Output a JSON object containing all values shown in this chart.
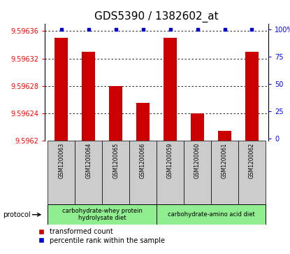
{
  "title": "GDS5390 / 1382602_at",
  "samples": [
    "GSM1200063",
    "GSM1200064",
    "GSM1200065",
    "GSM1200066",
    "GSM1200059",
    "GSM1200060",
    "GSM1200061",
    "GSM1200062"
  ],
  "red_values": [
    9.59635,
    9.59633,
    9.59628,
    9.596255,
    9.59635,
    9.59624,
    9.596215,
    9.59633
  ],
  "blue_values": [
    100,
    100,
    100,
    100,
    100,
    100,
    100,
    100
  ],
  "ylim_left": [
    9.5962,
    9.59637
  ],
  "ylim_right": [
    -2,
    105
  ],
  "yticks_left": [
    9.5962,
    9.59624,
    9.59628,
    9.59632,
    9.59636
  ],
  "ytick_labels_left": [
    "9.5962",
    "9.59624",
    "9.59628",
    "9.59632",
    "9.59636"
  ],
  "yticks_right": [
    0,
    25,
    50,
    75,
    100
  ],
  "ytick_labels_right": [
    "0",
    "25",
    "50",
    "75",
    "100%"
  ],
  "groups": [
    {
      "label": "carbohydrate-whey protein\nhydrolysate diet",
      "start": 0,
      "end": 4,
      "color": "#90EE90"
    },
    {
      "label": "carbohydrate-amino acid diet",
      "start": 4,
      "end": 8,
      "color": "#90EE90"
    }
  ],
  "protocol_label": "protocol",
  "bar_color_red": "#CC0000",
  "bar_color_blue": "#0000CC",
  "bar_width": 0.5,
  "background_label": "#CCCCCC",
  "legend_red": "transformed count",
  "legend_blue": "percentile rank within the sample",
  "title_fontsize": 11,
  "tick_fontsize": 7,
  "label_fontsize": 5.5,
  "protocol_fontsize": 7,
  "group_fontsize": 6,
  "legend_fontsize": 7
}
